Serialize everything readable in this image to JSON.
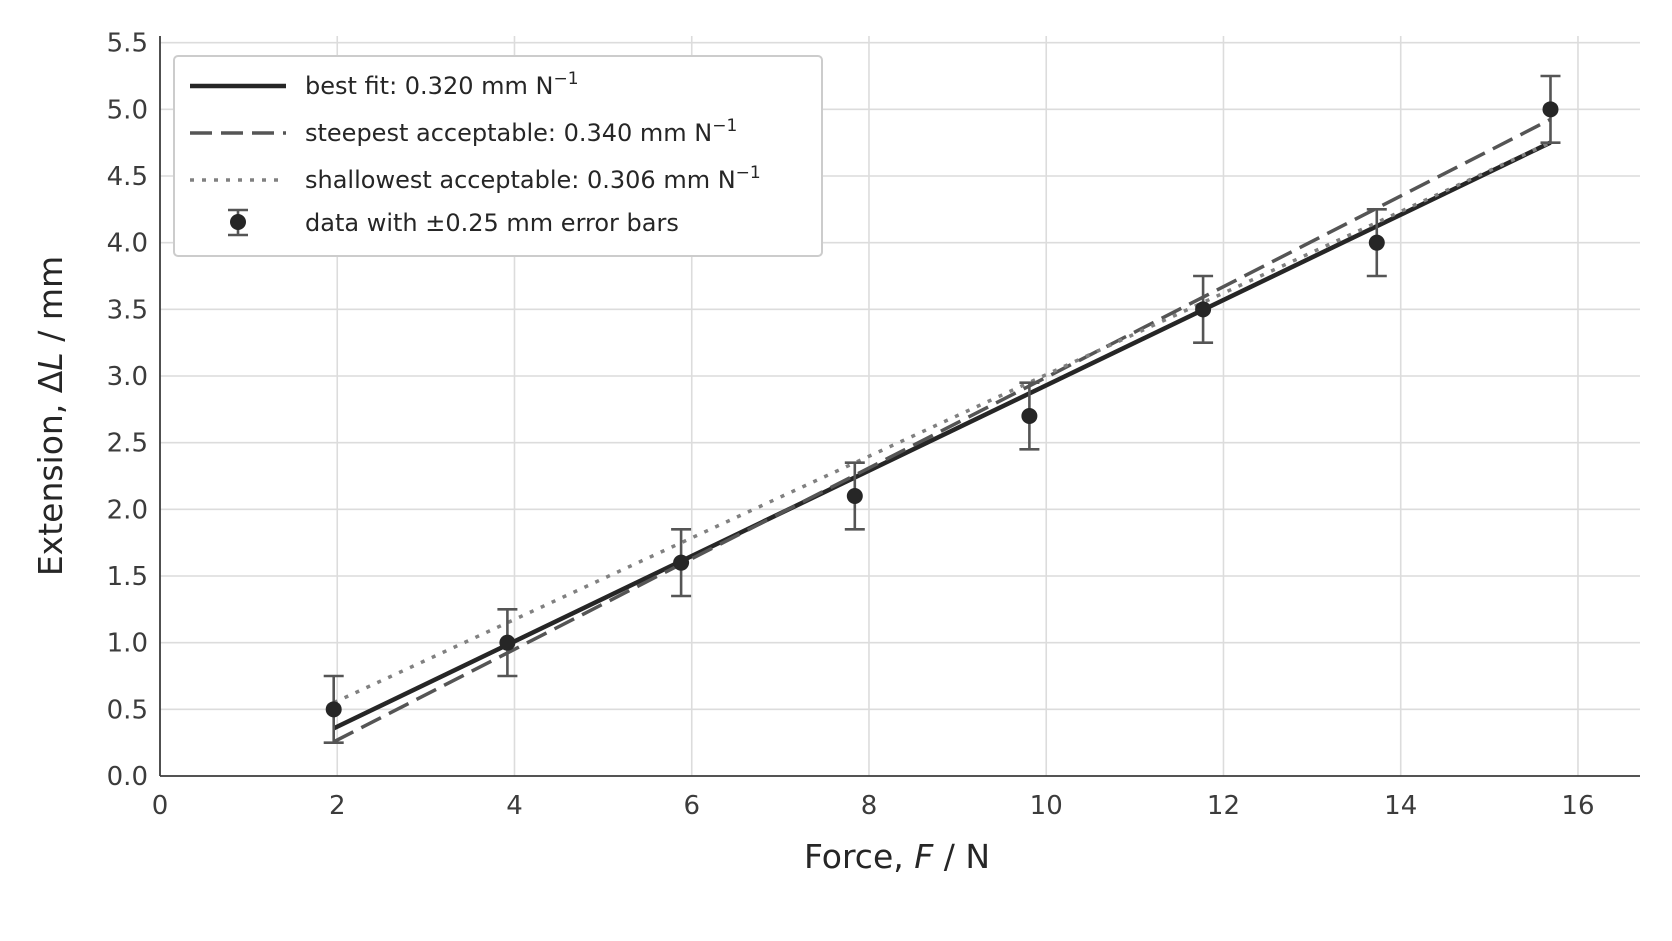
{
  "chart_data": {
    "type": "scatter",
    "xlabel": {
      "prefix": "Force, ",
      "var": "F",
      "suffix": " / N"
    },
    "ylabel": {
      "prefix": "Extension, Δ",
      "var": "L",
      "suffix": " / mm"
    },
    "xlim": [
      0,
      16.7
    ],
    "ylim": [
      0,
      5.55
    ],
    "xticks": [
      0,
      2,
      4,
      6,
      8,
      10,
      12,
      14,
      16
    ],
    "xtick_labels": [
      "0",
      "2",
      "4",
      "6",
      "8",
      "10",
      "12",
      "14",
      "16"
    ],
    "yticks": [
      0.0,
      0.5,
      1.0,
      1.5,
      2.0,
      2.5,
      3.0,
      3.5,
      4.0,
      4.5,
      5.0,
      5.5
    ],
    "ytick_labels": [
      "0.0",
      "0.5",
      "1.0",
      "1.5",
      "2.0",
      "2.5",
      "3.0",
      "3.5",
      "4.0",
      "4.5",
      "5.0",
      "5.5"
    ],
    "grid": true,
    "legend_position": "top-left",
    "data": {
      "x": [
        1.96,
        3.92,
        5.88,
        7.84,
        9.81,
        11.77,
        13.73,
        15.69
      ],
      "y": [
        0.5,
        1.0,
        1.6,
        2.1,
        2.7,
        3.5,
        4.0,
        5.0
      ],
      "error": 0.25,
      "color": "#262626",
      "error_color": "#555555"
    },
    "lines": [
      {
        "key": "best",
        "slope": 0.32,
        "intercept": -0.27,
        "x_range": [
          1.96,
          15.69
        ],
        "style": "solid",
        "color": "#262626"
      },
      {
        "key": "steep",
        "slope": 0.34,
        "intercept": -0.41,
        "x_range": [
          1.96,
          15.69
        ],
        "style": "dashed",
        "color": "#555555"
      },
      {
        "key": "shallow",
        "slope": 0.306,
        "intercept": -0.05,
        "x_range": [
          1.96,
          15.69
        ],
        "style": "dotted",
        "color": "#808080"
      }
    ],
    "legend": [
      {
        "key": "best",
        "label": "best fit: 0.320 mm N",
        "sup": "−1"
      },
      {
        "key": "steep",
        "label": "steepest acceptable: 0.340 mm N",
        "sup": "−1"
      },
      {
        "key": "shallow",
        "label": "shallowest acceptable: 0.306 mm N",
        "sup": "−1"
      },
      {
        "key": "data",
        "label": "data with ±0.25 mm error bars",
        "sup": ""
      }
    ]
  }
}
